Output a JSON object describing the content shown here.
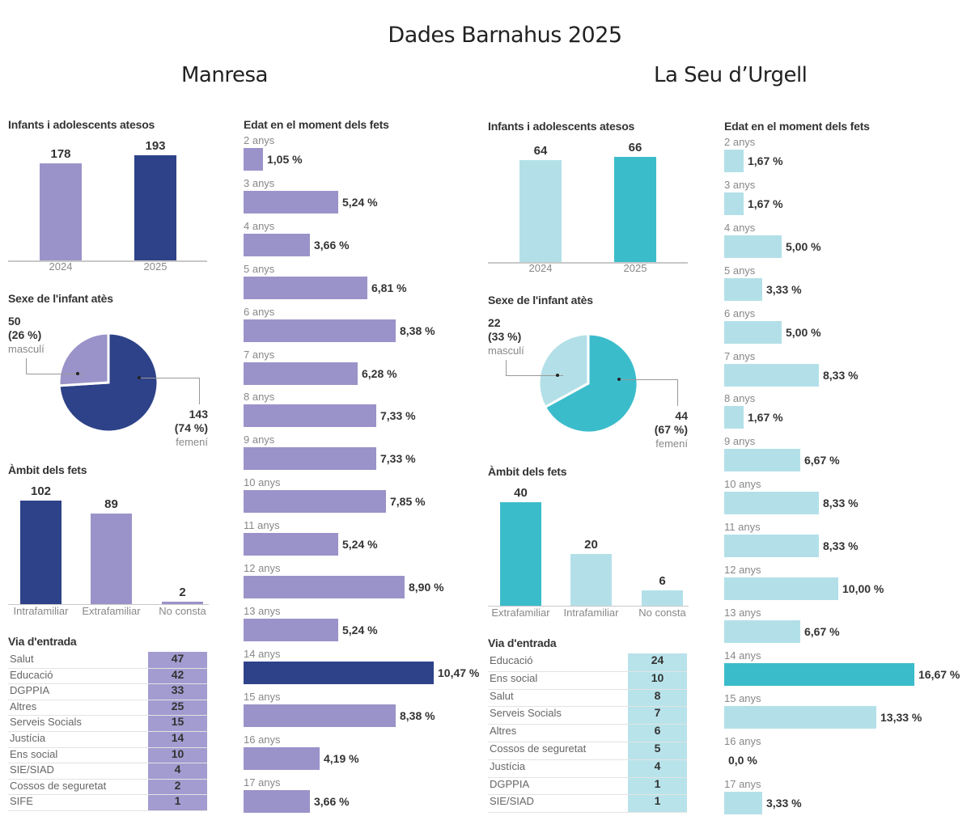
{
  "title": "Dades Barnahus 2025",
  "cities": [
    {
      "name": "Manresa",
      "colors": {
        "dark": "#2e4289",
        "light": "#9a93c9",
        "highlight": "#2e4289"
      },
      "attended": {
        "title": "Infants i adolescents atesos",
        "bars": [
          {
            "label": "2024",
            "value": "178"
          },
          {
            "label": "2025",
            "value": "193"
          }
        ]
      },
      "sex": {
        "title": "Sexe de l'infant atès",
        "male": {
          "count": "50",
          "pct": "(26 %)",
          "label": "masculí"
        },
        "female": {
          "count": "143",
          "pct": "(74 %)",
          "label": "femení"
        }
      },
      "scope": {
        "title": "Àmbit dels fets",
        "bars": [
          {
            "label": "Intrafamiliar",
            "value": "102"
          },
          {
            "label": "Extrafamiliar",
            "value": "89"
          },
          {
            "label": "No consta",
            "value": "2"
          }
        ]
      },
      "entry": {
        "title": "Via d'entrada",
        "rows": [
          {
            "name": "Salut",
            "value": "47"
          },
          {
            "name": "Educació",
            "value": "42"
          },
          {
            "name": "DGPPIA",
            "value": "33"
          },
          {
            "name": "Altres",
            "value": "25"
          },
          {
            "name": "Serveis Socials",
            "value": "15"
          },
          {
            "name": "Justícia",
            "value": "14"
          },
          {
            "name": "Ens social",
            "value": "10"
          },
          {
            "name": "SIE/SIAD",
            "value": "4"
          },
          {
            "name": "Cossos de seguretat",
            "value": "2"
          },
          {
            "name": "SIFE",
            "value": "1"
          }
        ]
      },
      "ages": {
        "title": "Edat en el moment dels fets",
        "rows": [
          {
            "label": "2 anys",
            "value": "1,05 %"
          },
          {
            "label": "3 anys",
            "value": "5,24 %"
          },
          {
            "label": "4 anys",
            "value": "3,66 %"
          },
          {
            "label": "5 anys",
            "value": "6,81 %"
          },
          {
            "label": "6 anys",
            "value": "8,38 %"
          },
          {
            "label": "7 anys",
            "value": "6,28 %"
          },
          {
            "label": "8 anys",
            "value": "7,33 %"
          },
          {
            "label": "9 anys",
            "value": "7,33 %"
          },
          {
            "label": "10 anys",
            "value": "7,85 %"
          },
          {
            "label": "11 anys",
            "value": "5,24 %"
          },
          {
            "label": "12 anys",
            "value": "8,90 %"
          },
          {
            "label": "13 anys",
            "value": "5,24 %"
          },
          {
            "label": "14 anys",
            "value": "10,47 %"
          },
          {
            "label": "15 anys",
            "value": "8,38 %"
          },
          {
            "label": "16 anys",
            "value": "4,19 %"
          },
          {
            "label": "17 anys",
            "value": "3,66 %"
          }
        ]
      }
    },
    {
      "name": "La Seu d’Urgell",
      "colors": {
        "dark": "#3bbccb",
        "light": "#b3e0e8",
        "highlight": "#3bbccb"
      },
      "attended": {
        "title": "Infants i adolescents atesos",
        "bars": [
          {
            "label": "2024",
            "value": "64"
          },
          {
            "label": "2025",
            "value": "66"
          }
        ]
      },
      "sex": {
        "title": "Sexe de l'infant atès",
        "male": {
          "count": "22",
          "pct": "(33 %)",
          "label": "masculí"
        },
        "female": {
          "count": "44",
          "pct": "(67 %)",
          "label": "femení"
        }
      },
      "scope": {
        "title": "Àmbit dels fets",
        "bars": [
          {
            "label": "Extrafamiliar",
            "value": "40"
          },
          {
            "label": "Intrafamiliar",
            "value": "20"
          },
          {
            "label": "No consta",
            "value": "6"
          }
        ]
      },
      "entry": {
        "title": "Via d'entrada",
        "rows": [
          {
            "name": "Educació",
            "value": "24"
          },
          {
            "name": "Ens social",
            "value": "10"
          },
          {
            "name": "Salut",
            "value": "8"
          },
          {
            "name": "Serveis Socials",
            "value": "7"
          },
          {
            "name": "Altres",
            "value": "6"
          },
          {
            "name": "Cossos de seguretat",
            "value": "5"
          },
          {
            "name": "Justícia",
            "value": "4"
          },
          {
            "name": "DGPPIA",
            "value": "1"
          },
          {
            "name": "SIE/SIAD",
            "value": "1"
          }
        ]
      },
      "ages": {
        "title": "Edat en el moment dels fets",
        "rows": [
          {
            "label": "2 anys",
            "value": "1,67 %"
          },
          {
            "label": "3 anys",
            "value": "1,67 %"
          },
          {
            "label": "4 anys",
            "value": "5,00 %"
          },
          {
            "label": "5 anys",
            "value": "3,33 %"
          },
          {
            "label": "6 anys",
            "value": "5,00 %"
          },
          {
            "label": "7 anys",
            "value": "8,33 %"
          },
          {
            "label": "8 anys",
            "value": "1,67 %"
          },
          {
            "label": "9 anys",
            "value": "6,67 %"
          },
          {
            "label": "10 anys",
            "value": "8,33 %"
          },
          {
            "label": "11 anys",
            "value": "8,33 %"
          },
          {
            "label": "12 anys",
            "value": "10,00 %"
          },
          {
            "label": "13 anys",
            "value": "6,67 %"
          },
          {
            "label": "14 anys",
            "value": "16,67 %"
          },
          {
            "label": "15 anys",
            "value": "13,33 %"
          },
          {
            "label": "16 anys",
            "value": "0,0 %"
          },
          {
            "label": "17 anys",
            "value": "3,33 %"
          }
        ]
      }
    }
  ],
  "chart_data": [
    {
      "type": "bar",
      "title": "Manresa – Infants i adolescents atesos",
      "categories": [
        "2024",
        "2025"
      ],
      "values": [
        178,
        193
      ],
      "xlabel": "",
      "ylabel": "",
      "grid": false
    },
    {
      "type": "pie",
      "title": "Manresa – Sexe de l'infant atès",
      "categories": [
        "masculí",
        "femení"
      ],
      "values": [
        50,
        143
      ],
      "percentages": [
        26,
        74
      ]
    },
    {
      "type": "bar",
      "title": "Manresa – Àmbit dels fets",
      "categories": [
        "Intrafamiliar",
        "Extrafamiliar",
        "No consta"
      ],
      "values": [
        102,
        89,
        2
      ]
    },
    {
      "type": "table",
      "title": "Manresa – Via d'entrada",
      "categories": [
        "Salut",
        "Educació",
        "DGPPIA",
        "Altres",
        "Serveis Socials",
        "Justícia",
        "Ens social",
        "SIE/SIAD",
        "Cossos de seguretat",
        "SIFE"
      ],
      "values": [
        47,
        42,
        33,
        25,
        15,
        14,
        10,
        4,
        2,
        1
      ]
    },
    {
      "type": "bar",
      "orientation": "horizontal",
      "title": "Manresa – Edat en el moment dels fets",
      "unit": "%",
      "categories": [
        "2 anys",
        "3 anys",
        "4 anys",
        "5 anys",
        "6 anys",
        "7 anys",
        "8 anys",
        "9 anys",
        "10 anys",
        "11 anys",
        "12 anys",
        "13 anys",
        "14 anys",
        "15 anys",
        "16 anys",
        "17 anys"
      ],
      "values": [
        1.05,
        5.24,
        3.66,
        6.81,
        8.38,
        6.28,
        7.33,
        7.33,
        7.85,
        5.24,
        8.9,
        5.24,
        10.47,
        8.38,
        4.19,
        3.66
      ],
      "highlight": "14 anys"
    },
    {
      "type": "bar",
      "title": "La Seu d’Urgell – Infants i adolescents atesos",
      "categories": [
        "2024",
        "2025"
      ],
      "values": [
        64,
        66
      ]
    },
    {
      "type": "pie",
      "title": "La Seu d’Urgell – Sexe de l'infant atès",
      "categories": [
        "masculí",
        "femení"
      ],
      "values": [
        22,
        44
      ],
      "percentages": [
        33,
        67
      ]
    },
    {
      "type": "bar",
      "title": "La Seu d’Urgell – Àmbit dels fets",
      "categories": [
        "Extrafamiliar",
        "Intrafamiliar",
        "No consta"
      ],
      "values": [
        40,
        20,
        6
      ]
    },
    {
      "type": "table",
      "title": "La Seu d’Urgell – Via d'entrada",
      "categories": [
        "Educació",
        "Ens social",
        "Salut",
        "Serveis Socials",
        "Altres",
        "Cossos de seguretat",
        "Justícia",
        "DGPPIA",
        "SIE/SIAD"
      ],
      "values": [
        24,
        10,
        8,
        7,
        6,
        5,
        4,
        1,
        1
      ]
    },
    {
      "type": "bar",
      "orientation": "horizontal",
      "title": "La Seu d’Urgell – Edat en el moment dels fets",
      "unit": "%",
      "categories": [
        "2 anys",
        "3 anys",
        "4 anys",
        "5 anys",
        "6 anys",
        "7 anys",
        "8 anys",
        "9 anys",
        "10 anys",
        "11 anys",
        "12 anys",
        "13 anys",
        "14 anys",
        "15 anys",
        "16 anys",
        "17 anys"
      ],
      "values": [
        1.67,
        1.67,
        5.0,
        3.33,
        5.0,
        8.33,
        1.67,
        6.67,
        8.33,
        8.33,
        10.0,
        6.67,
        16.67,
        13.33,
        0.0,
        3.33
      ],
      "highlight": "14 anys"
    }
  ]
}
